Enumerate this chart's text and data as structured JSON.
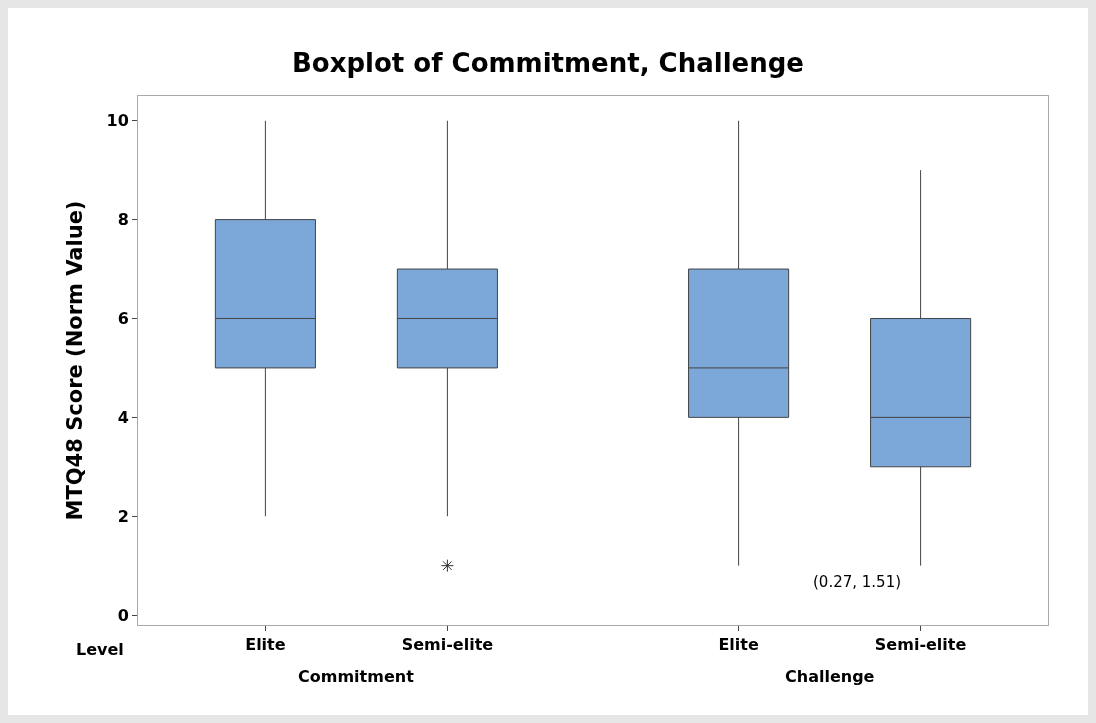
{
  "chart_data": {
    "type": "box",
    "title": "Boxplot of Commitment, Challenge",
    "ylabel": "MTQ48 Score (Norm Value)",
    "categories": [
      "Elite",
      "Semi-elite",
      "Elite",
      "Semi-elite"
    ],
    "boxes": [
      {
        "low": 2,
        "q1": 5,
        "median": 6,
        "q3": 8,
        "high": 10
      },
      {
        "low": 2,
        "q1": 5,
        "median": 6,
        "q3": 7,
        "high": 10,
        "outliers": [
          1
        ]
      },
      {
        "low": 1,
        "q1": 4,
        "median": 5,
        "q3": 7,
        "high": 10
      },
      {
        "low": 1,
        "q1": 3,
        "median": 4,
        "q3": 6,
        "high": 9
      }
    ],
    "color": "#7ba7d9",
    "ylim": [
      -0.2,
      10.5
    ],
    "yticks": [
      0,
      2,
      4,
      6,
      8,
      10
    ],
    "grid": false,
    "annotations": [
      "Level",
      "Commitment",
      "Challenge",
      "(0.27, 1.51)"
    ]
  }
}
